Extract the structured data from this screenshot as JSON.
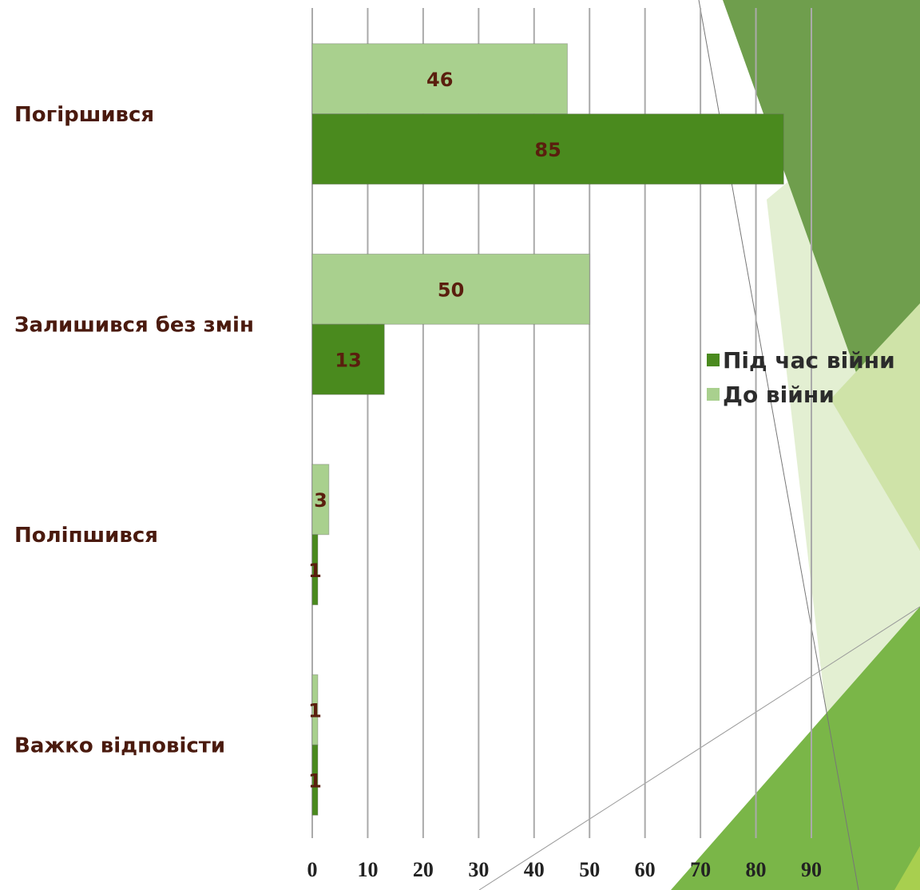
{
  "chart_data": {
    "type": "bar",
    "orientation": "horizontal",
    "categories": [
      "Погіршився",
      "Залишився без змін",
      "Поліпшився",
      "Важко відповісти"
    ],
    "series": [
      {
        "name": "Під час війни",
        "color": "#4a8a1e",
        "values": [
          85,
          13,
          1,
          1
        ]
      },
      {
        "name": "До війни",
        "color": "#a9d08e",
        "values": [
          46,
          50,
          3,
          1
        ]
      }
    ],
    "xlim": [
      0,
      90
    ],
    "xticks": [
      0,
      10,
      20,
      30,
      40,
      50,
      60,
      70,
      80,
      90
    ],
    "grid": true
  }
}
